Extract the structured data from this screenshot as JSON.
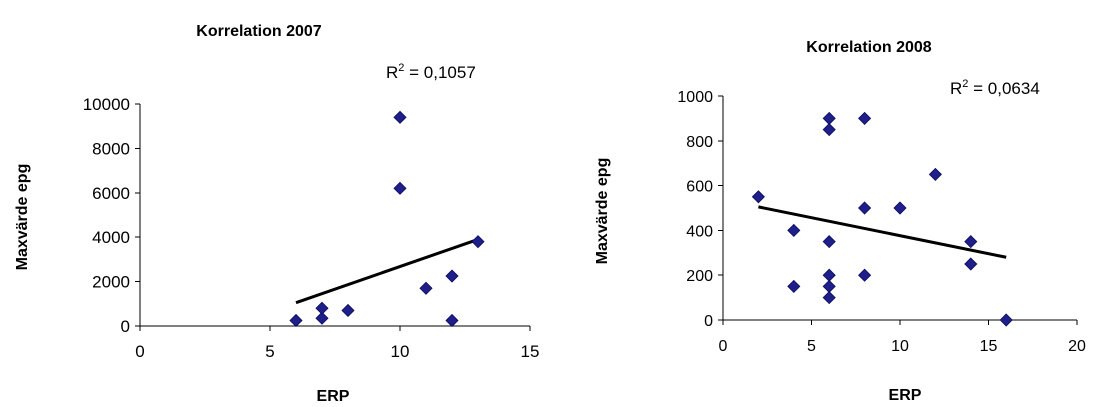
{
  "chart_data": [
    {
      "type": "scatter",
      "title": "Korrelation 2007",
      "xlabel": "ERP",
      "ylabel": "Maxvärde epg",
      "xlim": [
        0,
        15
      ],
      "ylim": [
        0,
        10000
      ],
      "x_ticks": [
        "0",
        "5",
        "10",
        "15"
      ],
      "y_ticks": [
        "0",
        "2000",
        "4000",
        "6000",
        "8000",
        "10000"
      ],
      "points": [
        {
          "x": 6,
          "y": 250
        },
        {
          "x": 7,
          "y": 350
        },
        {
          "x": 7,
          "y": 800
        },
        {
          "x": 8,
          "y": 700
        },
        {
          "x": 10,
          "y": 9400
        },
        {
          "x": 10,
          "y": 6200
        },
        {
          "x": 11,
          "y": 1700
        },
        {
          "x": 12,
          "y": 2250
        },
        {
          "x": 12,
          "y": 250
        },
        {
          "x": 13,
          "y": 3800
        }
      ],
      "trendline": {
        "x": [
          6,
          13
        ],
        "y": [
          1050,
          3900
        ]
      },
      "r_squared_prefix": "R",
      "r_squared_exp": "2",
      "r_squared_value": " = 0,1057",
      "marker_color": "#1f1f8c",
      "grid": false
    },
    {
      "type": "scatter",
      "title": "Korrelation 2008",
      "xlabel": "ERP",
      "ylabel": "Maxvärde epg",
      "xlim": [
        0,
        20
      ],
      "ylim": [
        0,
        1000
      ],
      "x_ticks": [
        "0",
        "5",
        "10",
        "15",
        "20"
      ],
      "y_ticks": [
        "0",
        "200",
        "400",
        "600",
        "800",
        "1000"
      ],
      "points": [
        {
          "x": 2,
          "y": 550
        },
        {
          "x": 4,
          "y": 400
        },
        {
          "x": 4,
          "y": 150
        },
        {
          "x": 6,
          "y": 900
        },
        {
          "x": 6,
          "y": 850
        },
        {
          "x": 6,
          "y": 350
        },
        {
          "x": 6,
          "y": 200
        },
        {
          "x": 6,
          "y": 150
        },
        {
          "x": 6,
          "y": 100
        },
        {
          "x": 8,
          "y": 900
        },
        {
          "x": 8,
          "y": 500
        },
        {
          "x": 8,
          "y": 200
        },
        {
          "x": 10,
          "y": 500
        },
        {
          "x": 12,
          "y": 650
        },
        {
          "x": 14,
          "y": 350
        },
        {
          "x": 14,
          "y": 250
        },
        {
          "x": 16,
          "y": 0
        }
      ],
      "trendline": {
        "x": [
          2,
          16
        ],
        "y": [
          505,
          280
        ]
      },
      "r_squared_prefix": "R",
      "r_squared_exp": "2",
      "r_squared_value": " = 0,0634",
      "marker_color": "#1f1f8c",
      "grid": false
    }
  ]
}
